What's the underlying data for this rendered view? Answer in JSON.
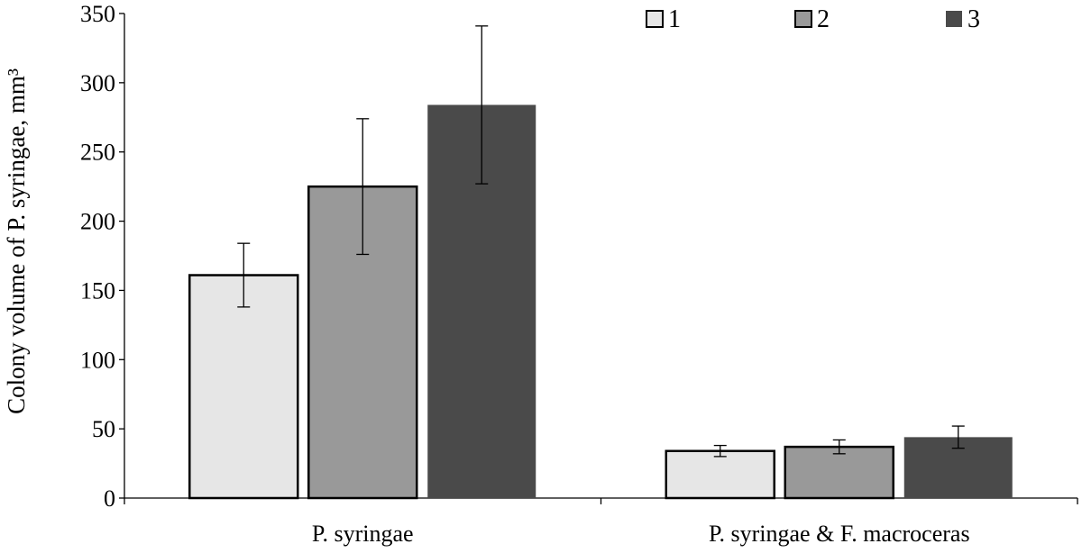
{
  "chart_data": {
    "type": "bar",
    "title": "",
    "xlabel": "",
    "ylabel": "Colony volume of P. syringae, mm³",
    "ylim": [
      0,
      350
    ],
    "yticks": [
      0,
      50,
      100,
      150,
      200,
      250,
      300,
      350
    ],
    "categories": [
      "P. syringae",
      "P. syringae  &  F. macroceras"
    ],
    "series": [
      {
        "name": "1",
        "color": "#e6e6e6",
        "outlined": true,
        "values": [
          161,
          34
        ],
        "errors": [
          23,
          4
        ]
      },
      {
        "name": "2",
        "color": "#999999",
        "outlined": true,
        "values": [
          225,
          37
        ],
        "errors": [
          49,
          5
        ]
      },
      {
        "name": "3",
        "color": "#4a4a4a",
        "outlined": false,
        "values": [
          284,
          44
        ],
        "errors": [
          57,
          8
        ]
      }
    ],
    "legend_position": "top-right",
    "grid": false
  }
}
